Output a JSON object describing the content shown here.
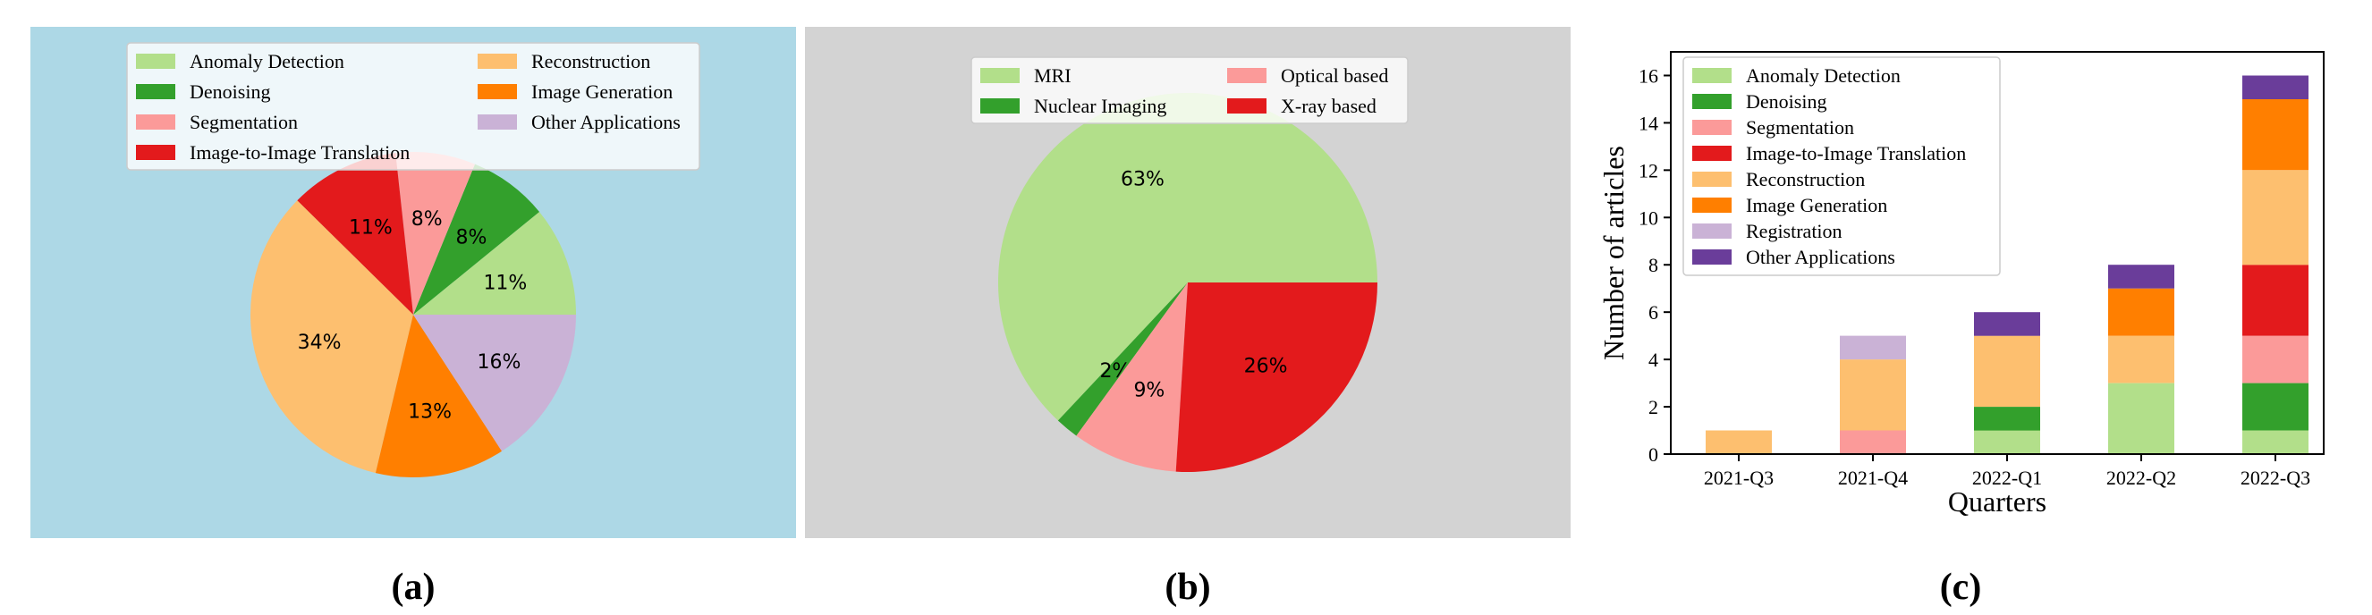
{
  "panels": [
    {
      "caption": "(a)",
      "background": "#add8e6"
    },
    {
      "caption": "(b)",
      "background": "#d3d3d3"
    },
    {
      "caption": "(c)"
    }
  ],
  "chart_data": [
    {
      "type": "pie",
      "legend_position": "top",
      "slices": [
        {
          "label": "Anomaly Detection",
          "value": 11,
          "text": "11%",
          "color": "#b2df8a"
        },
        {
          "label": "Denoising",
          "value": 8,
          "text": "8%",
          "color": "#33a02c"
        },
        {
          "label": "Segmentation",
          "value": 8,
          "text": "8%",
          "color": "#fb9a99"
        },
        {
          "label": "Image-to-Image Translation",
          "value": 11,
          "text": "11%",
          "color": "#e31a1c"
        },
        {
          "label": "Reconstruction",
          "value": 34,
          "text": "34%",
          "color": "#fdbf6f"
        },
        {
          "label": "Image Generation",
          "value": 13,
          "text": "13%",
          "color": "#ff7f00"
        },
        {
          "label": "Other Applications",
          "value": 16,
          "text": "16%",
          "color": "#cab2d6"
        }
      ]
    },
    {
      "type": "pie",
      "legend_position": "top",
      "slices": [
        {
          "label": "MRI",
          "value": 63,
          "text": "63%",
          "color": "#b2df8a"
        },
        {
          "label": "Nuclear Imaging",
          "value": 2,
          "text": "2%",
          "color": "#33a02c"
        },
        {
          "label": "Optical based",
          "value": 9,
          "text": "9%",
          "color": "#fb9a99"
        },
        {
          "label": "X-ray based",
          "value": 26,
          "text": "26%",
          "color": "#e31a1c"
        }
      ]
    },
    {
      "type": "bar",
      "stacked": true,
      "xlabel": "Quarters",
      "ylabel": "Number of articles",
      "ylim": [
        0,
        17
      ],
      "yticks": [
        0,
        2,
        4,
        6,
        8,
        10,
        12,
        14,
        16
      ],
      "legend_position": "top-left",
      "categories": [
        "2021-Q3",
        "2021-Q4",
        "2022-Q1",
        "2022-Q2",
        "2022-Q3"
      ],
      "series": [
        {
          "name": "Anomaly Detection",
          "color": "#b2df8a",
          "values": [
            0,
            0,
            1,
            3,
            1
          ]
        },
        {
          "name": "Denoising",
          "color": "#33a02c",
          "values": [
            0,
            0,
            1,
            0,
            2
          ]
        },
        {
          "name": "Segmentation",
          "color": "#fb9a99",
          "values": [
            0,
            1,
            0,
            0,
            2
          ]
        },
        {
          "name": "Image-to-Image Translation",
          "color": "#e31a1c",
          "values": [
            0,
            0,
            0,
            0,
            3
          ]
        },
        {
          "name": "Reconstruction",
          "color": "#fdbf6f",
          "values": [
            1,
            3,
            3,
            2,
            4
          ]
        },
        {
          "name": "Image Generation",
          "color": "#ff7f00",
          "values": [
            0,
            0,
            0,
            2,
            3
          ]
        },
        {
          "name": "Registration",
          "color": "#cab2d6",
          "values": [
            0,
            1,
            0,
            0,
            0
          ]
        },
        {
          "name": "Other Applications",
          "color": "#6a3d9a",
          "values": [
            0,
            0,
            1,
            1,
            1
          ]
        }
      ]
    }
  ]
}
